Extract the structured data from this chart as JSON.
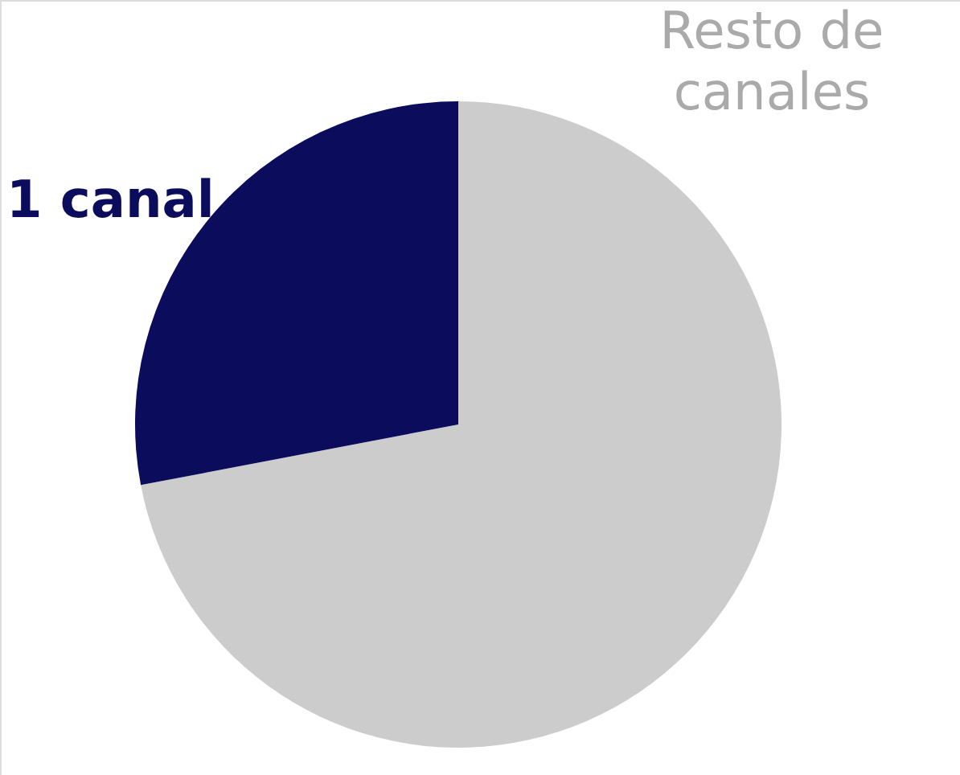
{
  "chart_data": {
    "type": "pie",
    "categories": [
      "Resto de canales",
      "1 canal"
    ],
    "values": [
      72,
      28
    ],
    "colors": [
      "#cccccc",
      "#0c0c5c"
    ]
  }
}
